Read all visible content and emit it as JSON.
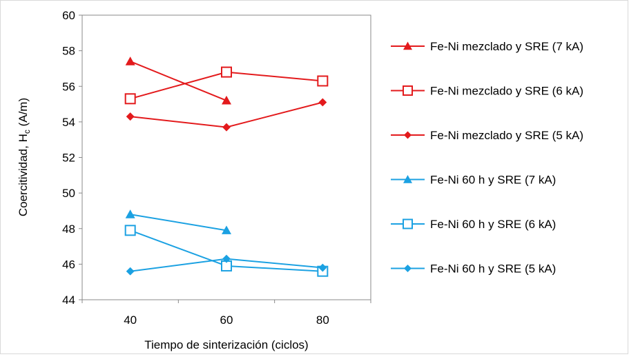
{
  "chart_data": {
    "type": "line",
    "title": "",
    "xlabel": "Tiempo de sinterización (ciclos)",
    "ylabel_main": "Coercitividad, H",
    "ylabel_sub": "c",
    "ylabel_unit": " (A/m)",
    "xlim": [
      30,
      90
    ],
    "ylim": [
      44,
      60
    ],
    "xticks": [
      40,
      60,
      80
    ],
    "yticks": [
      44,
      46,
      48,
      50,
      52,
      54,
      56,
      58,
      60
    ],
    "grid": false,
    "legend_position": "right",
    "series": [
      {
        "name": "Fe-Ni mezclado y SRE (7 kA)",
        "color": "#e31a1c",
        "marker": "triangle",
        "x": [
          40,
          60
        ],
        "values": [
          57.4,
          55.2
        ]
      },
      {
        "name": "Fe-Ni mezclado y SRE (6 kA)",
        "color": "#e31a1c",
        "marker": "square-open",
        "x": [
          40,
          60,
          80
        ],
        "values": [
          55.3,
          56.8,
          56.3
        ]
      },
      {
        "name": "Fe-Ni mezclado y SRE (5 kA)",
        "color": "#e31a1c",
        "marker": "diamond",
        "x": [
          40,
          60,
          80
        ],
        "values": [
          54.3,
          53.7,
          55.1
        ]
      },
      {
        "name": "Fe-Ni 60 h y SRE (7 kA)",
        "color": "#1ba1e2",
        "marker": "triangle",
        "x": [
          40,
          60
        ],
        "values": [
          48.8,
          47.9
        ]
      },
      {
        "name": "Fe-Ni 60 h y SRE (6 kA)",
        "color": "#1ba1e2",
        "marker": "square-open",
        "x": [
          40,
          60,
          80
        ],
        "values": [
          47.9,
          45.9,
          45.6
        ]
      },
      {
        "name": "Fe-Ni 60 h y SRE (5 kA)",
        "color": "#1ba1e2",
        "marker": "diamond",
        "x": [
          40,
          60,
          80
        ],
        "values": [
          45.6,
          46.3,
          45.8
        ]
      }
    ]
  }
}
